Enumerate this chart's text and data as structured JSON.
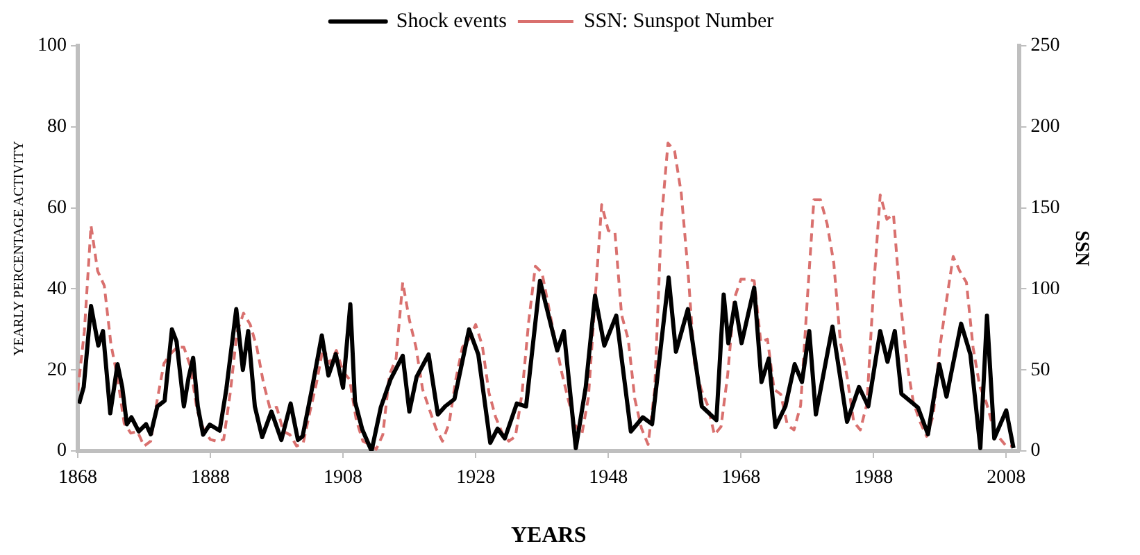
{
  "chart_data": {
    "type": "line",
    "xlabel": "YEARS",
    "ylabel": "YEARLY PERCENTAGE ACTIVITY",
    "y2label": "SSN",
    "xlim": [
      1868,
      2010
    ],
    "xticks": [
      1868,
      1888,
      1908,
      1928,
      1948,
      1968,
      1988,
      2008
    ],
    "ylim": [
      0,
      100
    ],
    "yticks": [
      0,
      20,
      40,
      60,
      80,
      100
    ],
    "y2lim": [
      0,
      250
    ],
    "y2ticks": [
      0,
      50,
      100,
      150,
      200,
      250
    ],
    "grid": false,
    "legend": "top",
    "marker": "none",
    "series": [
      {
        "name": "Shock events",
        "color": "#000000",
        "line_style": "solid",
        "x": [
          1868.2,
          1868.9,
          1870.0,
          1871.1,
          1871.8,
          1872.9,
          1874.0,
          1874.7,
          1875.4,
          1876.1,
          1877.2,
          1878.3,
          1879.0,
          1880.0,
          1881.1,
          1882.2,
          1882.9,
          1884.0,
          1884.7,
          1885.4,
          1886.1,
          1886.9,
          1887.9,
          1889.4,
          1890.4,
          1891.9,
          1892.9,
          1893.7,
          1894.7,
          1895.8,
          1897.2,
          1898.7,
          1900.1,
          1901.2,
          1901.9,
          1903.3,
          1904.8,
          1905.8,
          1906.9,
          1908.0,
          1909.1,
          1909.8,
          1910.9,
          1912.3,
          1913.7,
          1915.2,
          1917.0,
          1918.0,
          1919.1,
          1920.9,
          1922.3,
          1923.4,
          1924.8,
          1927.0,
          1928.4,
          1930.2,
          1931.3,
          1932.4,
          1934.2,
          1935.6,
          1937.7,
          1940.3,
          1941.3,
          1943.1,
          1944.6,
          1946.0,
          1947.4,
          1949.2,
          1951.4,
          1953.2,
          1954.6,
          1957.1,
          1958.2,
          1960.0,
          1962.1,
          1964.3,
          1965.4,
          1966.1,
          1967.1,
          1968.1,
          1970.0,
          1971.1,
          1972.2,
          1973.2,
          1974.7,
          1976.1,
          1977.2,
          1978.3,
          1979.3,
          1981.8,
          1984.0,
          1985.8,
          1987.2,
          1989.0,
          1990.1,
          1991.2,
          1992.2,
          1994.7,
          1996.2,
          1997.9,
          1999.0,
          2001.2,
          2002.6,
          2004.1,
          2005.1,
          2006.2,
          2008.0,
          2009.1
        ],
        "values": [
          11.7,
          15.8,
          35.8,
          26,
          29.6,
          9.3,
          21.4,
          15.8,
          6.6,
          8.3,
          4.8,
          6.6,
          4.1,
          11,
          12.4,
          30,
          27,
          11,
          18,
          23,
          11,
          4,
          6.5,
          5,
          15.2,
          35,
          20,
          29.6,
          11,
          3.4,
          9.7,
          2.7,
          11.7,
          2.7,
          3.6,
          15.2,
          28.5,
          18.6,
          23.9,
          15.6,
          36.2,
          12.2,
          5.3,
          0,
          10.8,
          17.8,
          23.5,
          9.7,
          18.3,
          23.8,
          9,
          11,
          12.8,
          30,
          23.8,
          2,
          5.5,
          3.1,
          11.7,
          11,
          42,
          24.8,
          29.6,
          0.7,
          15.8,
          38.3,
          26,
          33.4,
          4.8,
          8.3,
          6.6,
          42.8,
          24.5,
          35,
          11,
          7.6,
          38.6,
          26.6,
          36.6,
          26.6,
          40.3,
          17,
          22.8,
          5.9,
          11,
          21.4,
          17,
          29.6,
          9,
          30.7,
          7.2,
          15.8,
          11,
          29.6,
          22,
          29.6,
          14.1,
          10.7,
          4.1,
          21.4,
          13.4,
          31.4,
          23.8,
          0.7,
          33.4,
          3.1,
          10,
          0.7
        ]
      },
      {
        "name": "SSN: Sunspot Number",
        "color": "#d9706e",
        "line_style": "dashed",
        "axis": "y2",
        "x": [
          1868,
          1869,
          1870,
          1871,
          1872,
          1873,
          1874,
          1875,
          1876,
          1877,
          1878,
          1879,
          1880,
          1881,
          1882,
          1883,
          1884,
          1885,
          1886,
          1887,
          1888,
          1889,
          1890,
          1891,
          1892,
          1893,
          1894,
          1895,
          1896,
          1897,
          1898,
          1899,
          1900,
          1901,
          1902,
          1903,
          1904,
          1905,
          1906,
          1907,
          1908,
          1909,
          1910,
          1911,
          1912,
          1913,
          1914,
          1915,
          1916,
          1917,
          1918,
          1919,
          1920,
          1921,
          1922,
          1923,
          1924,
          1925,
          1926,
          1927,
          1928,
          1929,
          1930,
          1931,
          1932,
          1933,
          1934,
          1935,
          1936,
          1937,
          1938,
          1939,
          1940,
          1941,
          1942,
          1943,
          1944,
          1945,
          1946,
          1947,
          1948,
          1949,
          1950,
          1951,
          1952,
          1953,
          1954,
          1955,
          1956,
          1957,
          1958,
          1959,
          1960,
          1961,
          1962,
          1963,
          1964,
          1965,
          1966,
          1967,
          1968,
          1969,
          1970,
          1971,
          1972,
          1973,
          1974,
          1975,
          1976,
          1977,
          1978,
          1979,
          1980,
          1981,
          1982,
          1983,
          1984,
          1985,
          1986,
          1987,
          1988,
          1989,
          1990,
          1991,
          1992,
          1993,
          1994,
          1995,
          1996,
          1997,
          1998,
          1999,
          2000,
          2001,
          2002,
          2003,
          2004,
          2005,
          2006,
          2007,
          2008,
          2009
        ],
        "values": [
          37,
          74,
          139,
          111,
          102,
          66,
          45,
          17,
          11,
          12,
          3,
          6,
          32,
          54,
          60,
          64,
          64,
          52,
          25,
          13,
          7,
          6,
          7,
          36,
          73,
          85,
          78,
          64,
          42,
          26,
          27,
          12,
          10,
          3,
          5,
          24,
          42,
          64,
          54,
          62,
          49,
          44,
          19,
          6,
          4,
          1,
          10,
          47,
          57,
          104,
          81,
          64,
          38,
          26,
          14,
          6,
          17,
          44,
          64,
          69,
          78,
          65,
          36,
          21,
          11,
          6,
          9,
          36,
          80,
          114,
          110,
          89,
          68,
          48,
          31,
          16,
          10,
          33,
          93,
          152,
          136,
          135,
          84,
          69,
          32,
          14,
          4,
          38,
          142,
          190,
          185,
          159,
          112,
          54,
          38,
          28,
          10,
          15,
          47,
          94,
          106,
          106,
          105,
          67,
          69,
          38,
          35,
          16,
          13,
          28,
          93,
          155,
          155,
          140,
          116,
          67,
          46,
          18,
          13,
          29,
          100,
          158,
          143,
          146,
          94,
          55,
          30,
          18,
          9,
          22,
          64,
          93,
          120,
          111,
          104,
          64,
          40,
          30,
          15,
          8,
          3,
          3
        ]
      }
    ]
  }
}
